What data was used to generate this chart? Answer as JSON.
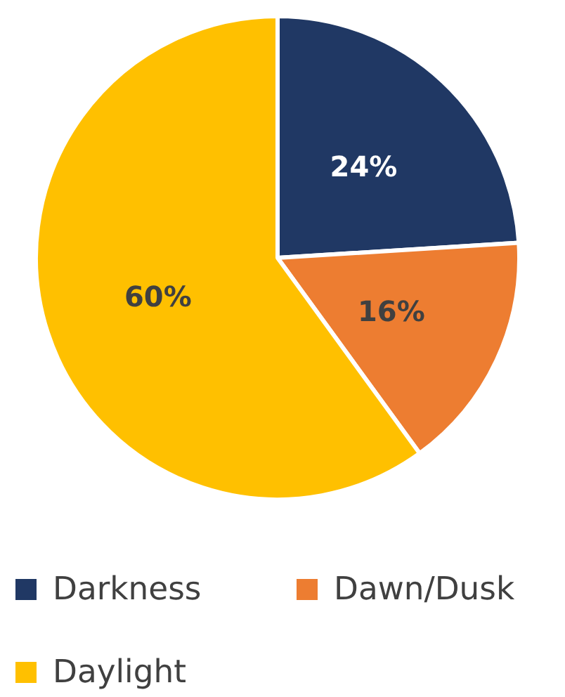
{
  "chart_data": {
    "type": "pie",
    "categories": [
      "Darkness",
      "Dawn/Dusk",
      "Daylight"
    ],
    "values": [
      24,
      16,
      60
    ],
    "colors": [
      "#203864",
      "#ed7d31",
      "#ffc000"
    ],
    "value_labels": [
      "24%",
      "16%",
      "60%"
    ],
    "legend": "bottom"
  }
}
